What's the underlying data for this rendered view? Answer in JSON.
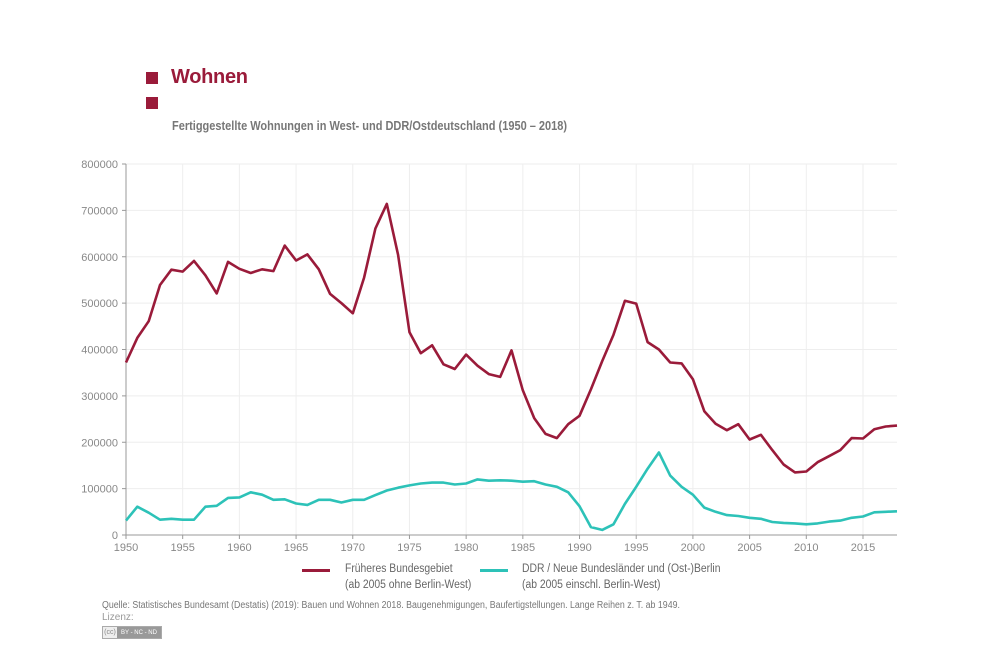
{
  "header": {
    "title": "Wohnen",
    "subtitle": "Fertiggestellte Wohnungen in West- und DDR/Ostdeutschland (1950 – 2018)",
    "accent_color": "#9a1b3a"
  },
  "footer": {
    "source": "Quelle: Statistisches Bundesamt (Destatis) (2019): Bauen und Wohnen 2018. Baugenehmigungen, Baufertigstellungen. Lange Reihen z. T. ab 1949.",
    "license_label": "Lizenz:",
    "license_badge": "BY - NC - ND",
    "license_icon": "cc-icon"
  },
  "chart_data": {
    "type": "line",
    "title": "Fertiggestellte Wohnungen in West- und DDR/Ostdeutschland (1950 – 2018)",
    "xlabel": "",
    "ylabel": "",
    "xlim": [
      1950,
      2018
    ],
    "ylim": [
      0,
      800000
    ],
    "grid": true,
    "legend_position": "bottom",
    "x_ticks": [
      "1950",
      "1955",
      "1960",
      "1965",
      "1970",
      "1975",
      "1980",
      "1985",
      "1990",
      "1995",
      "2000",
      "2005",
      "2010",
      "2015"
    ],
    "y_ticks": [
      "0",
      "100000",
      "200000",
      "300000",
      "400000",
      "500000",
      "600000",
      "700000",
      "800000"
    ],
    "x": [
      1950,
      1951,
      1952,
      1953,
      1954,
      1955,
      1956,
      1957,
      1958,
      1959,
      1960,
      1961,
      1962,
      1963,
      1964,
      1965,
      1966,
      1967,
      1968,
      1969,
      1970,
      1971,
      1972,
      1973,
      1974,
      1975,
      1976,
      1977,
      1978,
      1979,
      1980,
      1981,
      1982,
      1983,
      1984,
      1985,
      1986,
      1987,
      1988,
      1989,
      1990,
      1991,
      1992,
      1993,
      1994,
      1995,
      1996,
      1997,
      1998,
      1999,
      2000,
      2001,
      2002,
      2003,
      2004,
      2005,
      2006,
      2007,
      2008,
      2009,
      2010,
      2011,
      2012,
      2013,
      2014,
      2015,
      2016,
      2017,
      2018
    ],
    "series": [
      {
        "name": "Früheres Bundesgebiet",
        "name_line2": "(ab 2005 ohne Berlin-West)",
        "color": "#9a1b3a",
        "values": [
          372000,
          425000,
          461000,
          539000,
          572000,
          568000,
          591000,
          560000,
          521000,
          589000,
          574000,
          565000,
          573000,
          569000,
          624000,
          592000,
          605000,
          573000,
          520000,
          500000,
          478000,
          555000,
          661000,
          714000,
          604000,
          437000,
          392000,
          409000,
          368000,
          358000,
          389000,
          365000,
          347000,
          341000,
          398000,
          312000,
          252000,
          218000,
          209000,
          239000,
          257000,
          314000,
          375000,
          432000,
          505000,
          499000,
          416000,
          400000,
          372000,
          370000,
          336000,
          267000,
          240000,
          226000,
          239000,
          206000,
          216000,
          183000,
          152000,
          135000,
          137000,
          157000,
          170000,
          183000,
          209000,
          208000,
          228000,
          234000,
          236000
        ]
      },
      {
        "name": "DDR / Neue Bundesländer und (Ost-)Berlin",
        "name_line2": "(ab 2005 einschl. Berlin-West)",
        "color": "#2dc2b8",
        "values": [
          31000,
          61000,
          48000,
          33000,
          35000,
          33000,
          33000,
          61000,
          63000,
          80000,
          81000,
          92000,
          87000,
          76000,
          77000,
          68000,
          65000,
          76000,
          76000,
          70000,
          76000,
          76000,
          86000,
          96000,
          102000,
          107000,
          111000,
          113000,
          113000,
          109000,
          111000,
          120000,
          117000,
          118000,
          117000,
          115000,
          116000,
          109000,
          104000,
          92000,
          62000,
          17000,
          11000,
          23000,
          67000,
          104000,
          143000,
          178000,
          128000,
          104000,
          87000,
          59000,
          50000,
          43000,
          41000,
          37000,
          35000,
          28000,
          26000,
          25000,
          23000,
          25000,
          29000,
          31000,
          37000,
          40000,
          49000,
          50000,
          51000
        ]
      }
    ]
  }
}
